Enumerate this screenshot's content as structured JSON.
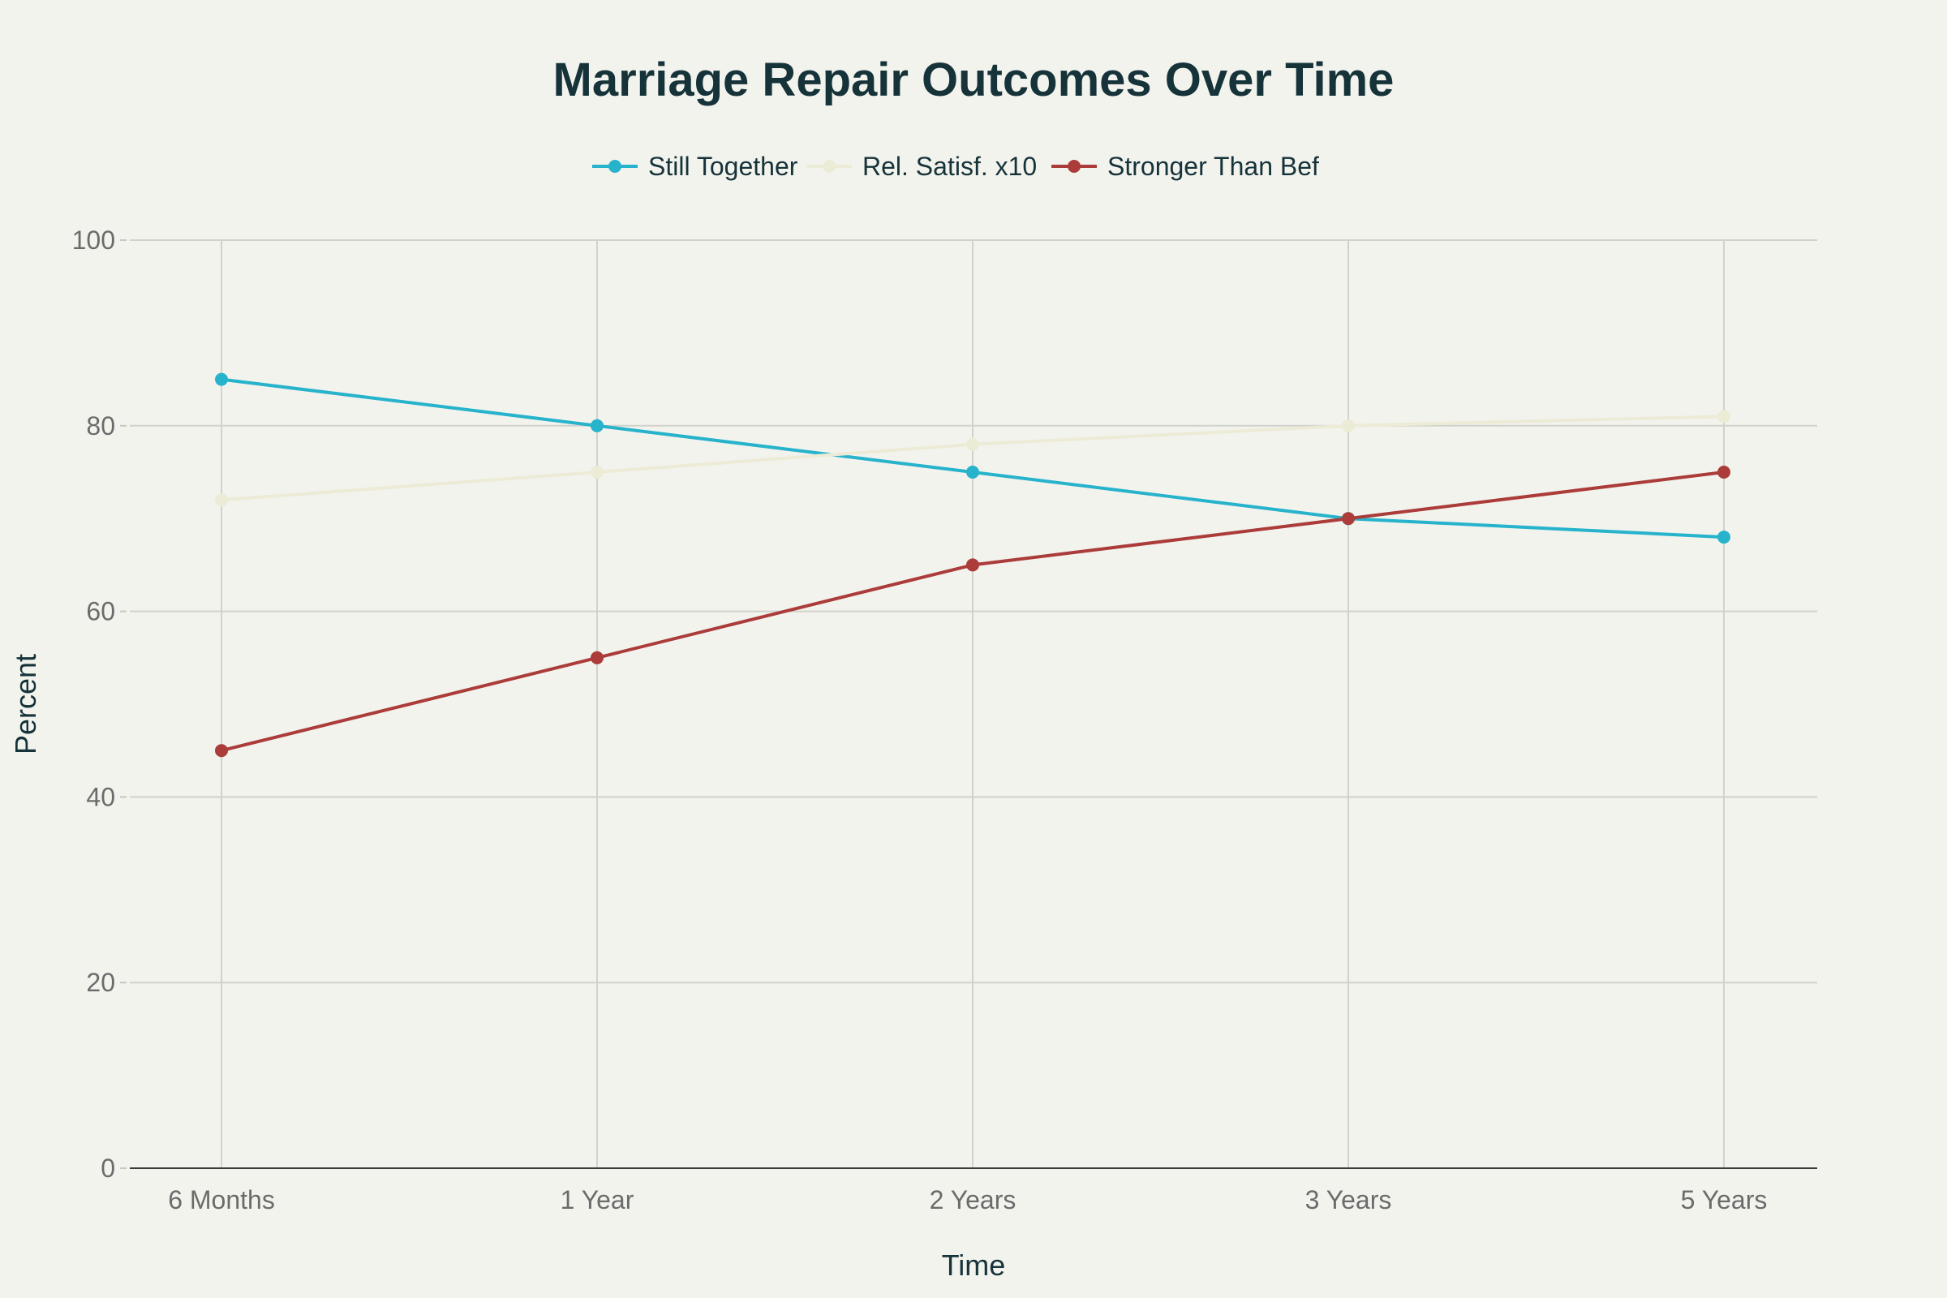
{
  "chart_data": {
    "type": "line",
    "title": "Marriage Repair Outcomes Over Time",
    "xlabel": "Time",
    "ylabel": "Percent",
    "ylim": [
      0,
      100
    ],
    "yticks": [
      0,
      20,
      40,
      60,
      80,
      100
    ],
    "categories": [
      "6 Months",
      "1 Year",
      "2 Years",
      "3 Years",
      "5 Years"
    ],
    "grid": true,
    "legend_position": "top-center",
    "series": [
      {
        "name": "Still Together",
        "color": "#26b3cb",
        "values": [
          85,
          80,
          75,
          70,
          68
        ]
      },
      {
        "name": "Rel. Satisf. x10",
        "color": "#ecebd6",
        "values": [
          72,
          75,
          78,
          80,
          81
        ]
      },
      {
        "name": "Stronger Than Bef",
        "color": "#ab3c3a",
        "values": [
          45,
          55,
          65,
          70,
          75
        ]
      }
    ]
  }
}
